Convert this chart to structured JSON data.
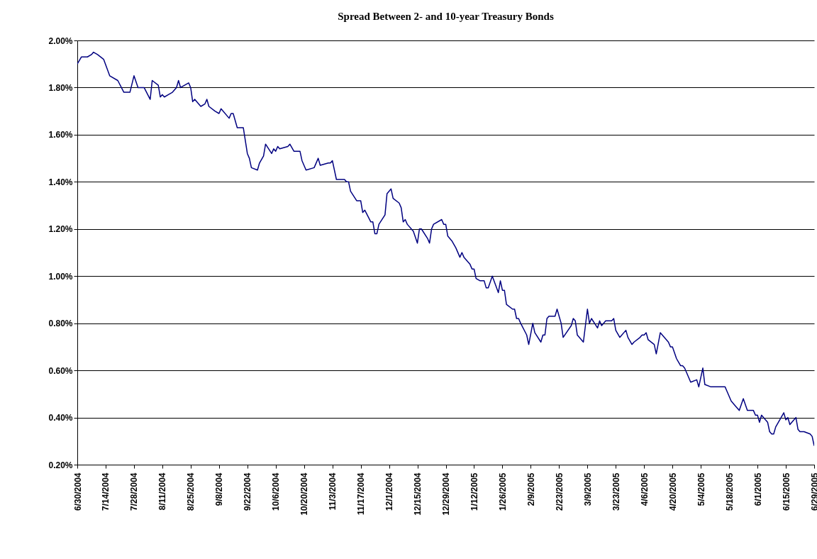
{
  "chart_data": {
    "type": "line",
    "title": "Spread Between 2- and 10-year Treasury Bonds",
    "x": [
      "2004-06-30",
      "2004-07-02",
      "2004-07-05",
      "2004-07-07",
      "2004-07-08",
      "2004-07-10",
      "2004-07-13",
      "2004-07-16",
      "2004-07-20",
      "2004-07-23",
      "2004-07-26",
      "2004-07-28",
      "2004-07-30",
      "2004-08-02",
      "2004-08-05",
      "2004-08-06",
      "2004-08-09",
      "2004-08-10",
      "2004-08-11",
      "2004-08-12",
      "2004-08-14",
      "2004-08-16",
      "2004-08-18",
      "2004-08-19",
      "2004-08-20",
      "2004-08-24",
      "2004-08-25",
      "2004-08-26",
      "2004-08-27",
      "2004-08-30",
      "2004-09-01",
      "2004-09-02",
      "2004-09-03",
      "2004-09-06",
      "2004-09-08",
      "2004-09-09",
      "2004-09-13",
      "2004-09-14",
      "2004-09-15",
      "2004-09-17",
      "2004-09-20",
      "2004-09-22",
      "2004-09-23",
      "2004-09-24",
      "2004-09-27",
      "2004-09-28",
      "2004-09-30",
      "2004-10-01",
      "2004-10-04",
      "2004-10-05",
      "2004-10-06",
      "2004-10-07",
      "2004-10-08",
      "2004-10-12",
      "2004-10-13",
      "2004-10-15",
      "2004-10-18",
      "2004-10-19",
      "2004-10-21",
      "2004-10-25",
      "2004-10-27",
      "2004-10-28",
      "2004-11-01",
      "2004-11-02",
      "2004-11-03",
      "2004-11-05",
      "2004-11-09",
      "2004-11-10",
      "2004-11-11",
      "2004-11-12",
      "2004-11-15",
      "2004-11-17",
      "2004-11-18",
      "2004-11-19",
      "2004-11-22",
      "2004-11-23",
      "2004-11-24",
      "2004-11-25",
      "2004-11-26",
      "2004-11-29",
      "2004-11-30",
      "2004-12-02",
      "2004-12-03",
      "2004-12-06",
      "2004-12-07",
      "2004-12-08",
      "2004-12-09",
      "2004-12-10",
      "2004-12-13",
      "2004-12-15",
      "2004-12-16",
      "2004-12-17",
      "2004-12-20",
      "2004-12-21",
      "2004-12-22",
      "2004-12-23",
      "2004-12-27",
      "2004-12-28",
      "2004-12-29",
      "2004-12-30",
      "2005-01-01",
      "2005-01-03",
      "2005-01-05",
      "2005-01-06",
      "2005-01-07",
      "2005-01-10",
      "2005-01-11",
      "2005-01-12",
      "2005-01-13",
      "2005-01-15",
      "2005-01-17",
      "2005-01-18",
      "2005-01-19",
      "2005-01-21",
      "2005-01-24",
      "2005-01-25",
      "2005-01-26",
      "2005-01-27",
      "2005-01-28",
      "2005-01-31",
      "2005-02-01",
      "2005-02-02",
      "2005-02-03",
      "2005-02-04",
      "2005-02-07",
      "2005-02-08",
      "2005-02-10",
      "2005-02-11",
      "2005-02-14",
      "2005-02-15",
      "2005-02-16",
      "2005-02-17",
      "2005-02-18",
      "2005-02-21",
      "2005-02-22",
      "2005-02-24",
      "2005-02-25",
      "2005-03-01",
      "2005-03-02",
      "2005-03-03",
      "2005-03-04",
      "2005-03-07",
      "2005-03-09",
      "2005-03-10",
      "2005-03-11",
      "2005-03-14",
      "2005-03-15",
      "2005-03-16",
      "2005-03-17",
      "2005-03-18",
      "2005-03-21",
      "2005-03-22",
      "2005-03-23",
      "2005-03-25",
      "2005-03-28",
      "2005-03-29",
      "2005-03-31",
      "2005-04-01",
      "2005-04-04",
      "2005-04-05",
      "2005-04-06",
      "2005-04-07",
      "2005-04-08",
      "2005-04-11",
      "2005-04-12",
      "2005-04-14",
      "2005-04-18",
      "2005-04-19",
      "2005-04-20",
      "2005-04-22",
      "2005-04-24",
      "2005-04-25",
      "2005-04-26",
      "2005-04-28",
      "2005-04-29",
      "2005-05-02",
      "2005-05-03",
      "2005-05-05",
      "2005-05-06",
      "2005-05-09",
      "2005-05-10",
      "2005-05-11",
      "2005-05-13",
      "2005-05-16",
      "2005-05-17",
      "2005-05-19",
      "2005-05-21",
      "2005-05-23",
      "2005-05-25",
      "2005-05-27",
      "2005-05-30",
      "2005-05-31",
      "2005-06-01",
      "2005-06-02",
      "2005-06-03",
      "2005-06-06",
      "2005-06-07",
      "2005-06-08",
      "2005-06-09",
      "2005-06-10",
      "2005-06-14",
      "2005-06-15",
      "2005-06-16",
      "2005-06-17",
      "2005-06-20",
      "2005-06-21",
      "2005-06-22",
      "2005-06-24",
      "2005-06-27",
      "2005-06-28",
      "2005-06-29"
    ],
    "series": [
      {
        "color": "#000080",
        "values": [
          1.9,
          1.93,
          1.93,
          1.94,
          1.95,
          1.94,
          1.92,
          1.85,
          1.83,
          1.78,
          1.78,
          1.85,
          1.8,
          1.8,
          1.75,
          1.83,
          1.81,
          1.76,
          1.77,
          1.76,
          1.77,
          1.78,
          1.8,
          1.83,
          1.8,
          1.82,
          1.8,
          1.74,
          1.75,
          1.72,
          1.73,
          1.75,
          1.72,
          1.7,
          1.69,
          1.71,
          1.67,
          1.69,
          1.69,
          1.63,
          1.63,
          1.52,
          1.5,
          1.46,
          1.45,
          1.48,
          1.51,
          1.56,
          1.52,
          1.54,
          1.53,
          1.55,
          1.54,
          1.55,
          1.56,
          1.53,
          1.53,
          1.49,
          1.45,
          1.46,
          1.5,
          1.47,
          1.48,
          1.48,
          1.49,
          1.41,
          1.41,
          1.4,
          1.4,
          1.36,
          1.32,
          1.32,
          1.27,
          1.28,
          1.23,
          1.23,
          1.18,
          1.18,
          1.22,
          1.26,
          1.35,
          1.37,
          1.33,
          1.31,
          1.29,
          1.23,
          1.24,
          1.22,
          1.19,
          1.14,
          1.2,
          1.2,
          1.16,
          1.14,
          1.2,
          1.22,
          1.24,
          1.22,
          1.22,
          1.17,
          1.15,
          1.12,
          1.08,
          1.1,
          1.08,
          1.05,
          1.03,
          1.03,
          0.99,
          0.98,
          0.98,
          0.95,
          0.95,
          1.0,
          0.93,
          0.98,
          0.94,
          0.94,
          0.88,
          0.86,
          0.86,
          0.82,
          0.82,
          0.8,
          0.75,
          0.71,
          0.8,
          0.76,
          0.72,
          0.75,
          0.75,
          0.82,
          0.83,
          0.83,
          0.86,
          0.8,
          0.74,
          0.79,
          0.82,
          0.81,
          0.75,
          0.72,
          0.86,
          0.8,
          0.82,
          0.78,
          0.81,
          0.79,
          0.8,
          0.81,
          0.81,
          0.82,
          0.77,
          0.74,
          0.77,
          0.74,
          0.71,
          0.72,
          0.74,
          0.75,
          0.75,
          0.76,
          0.73,
          0.71,
          0.67,
          0.76,
          0.72,
          0.7,
          0.7,
          0.65,
          0.62,
          0.62,
          0.61,
          0.57,
          0.55,
          0.56,
          0.53,
          0.61,
          0.54,
          0.53,
          0.53,
          0.53,
          0.53,
          0.53,
          0.51,
          0.47,
          0.45,
          0.43,
          0.48,
          0.43,
          0.43,
          0.41,
          0.41,
          0.38,
          0.41,
          0.38,
          0.34,
          0.33,
          0.33,
          0.36,
          0.42,
          0.39,
          0.4,
          0.37,
          0.4,
          0.35,
          0.34,
          0.34,
          0.33,
          0.32,
          0.28
        ]
      }
    ],
    "xlim": [
      "2004-06-30",
      "2005-06-29"
    ],
    "xticks": [
      {
        "value": "2004-06-30",
        "label": "6/30/2004"
      },
      {
        "value": "2004-07-14",
        "label": "7/14/2004"
      },
      {
        "value": "2004-07-28",
        "label": "7/28/2004"
      },
      {
        "value": "2004-08-11",
        "label": "8/11/2004"
      },
      {
        "value": "2004-08-25",
        "label": "8/25/2004"
      },
      {
        "value": "2004-09-08",
        "label": "9/8/2004"
      },
      {
        "value": "2004-09-22",
        "label": "9/22/2004"
      },
      {
        "value": "2004-10-06",
        "label": "10/6/2004"
      },
      {
        "value": "2004-10-20",
        "label": "10/20/2004"
      },
      {
        "value": "2004-11-03",
        "label": "11/3/2004"
      },
      {
        "value": "2004-11-17",
        "label": "11/17/2004"
      },
      {
        "value": "2004-12-01",
        "label": "12/1/2004"
      },
      {
        "value": "2004-12-15",
        "label": "12/15/2004"
      },
      {
        "value": "2004-12-29",
        "label": "12/29/2004"
      },
      {
        "value": "2005-01-12",
        "label": "1/12/2005"
      },
      {
        "value": "2005-01-26",
        "label": "1/26/2005"
      },
      {
        "value": "2005-02-09",
        "label": "2/9/2005"
      },
      {
        "value": "2005-02-23",
        "label": "2/23/2005"
      },
      {
        "value": "2005-03-09",
        "label": "3/9/2005"
      },
      {
        "value": "2005-03-23",
        "label": "3/23/2005"
      },
      {
        "value": "2005-04-06",
        "label": "4/6/2005"
      },
      {
        "value": "2005-04-20",
        "label": "4/20/2005"
      },
      {
        "value": "2005-05-04",
        "label": "5/4/2005"
      },
      {
        "value": "2005-05-18",
        "label": "5/18/2005"
      },
      {
        "value": "2005-06-01",
        "label": "6/1/2005"
      },
      {
        "value": "2005-06-15",
        "label": "6/15/2005"
      },
      {
        "value": "2005-06-29",
        "label": "6/29/2005"
      }
    ],
    "ylim": [
      0.2,
      2.0
    ],
    "yticks": [
      {
        "value": 0.2,
        "label": "0.20%"
      },
      {
        "value": 0.4,
        "label": "0.40%"
      },
      {
        "value": 0.6,
        "label": "0.60%"
      },
      {
        "value": 0.8,
        "label": "0.80%"
      },
      {
        "value": 1.0,
        "label": "1.00%"
      },
      {
        "value": 1.2,
        "label": "1.20%"
      },
      {
        "value": 1.4,
        "label": "1.40%"
      },
      {
        "value": 1.6,
        "label": "1.60%"
      },
      {
        "value": 1.8,
        "label": "1.80%"
      },
      {
        "value": 2.0,
        "label": "2.00%"
      }
    ],
    "grid": "y",
    "marker": "none",
    "line_style": "solid"
  }
}
